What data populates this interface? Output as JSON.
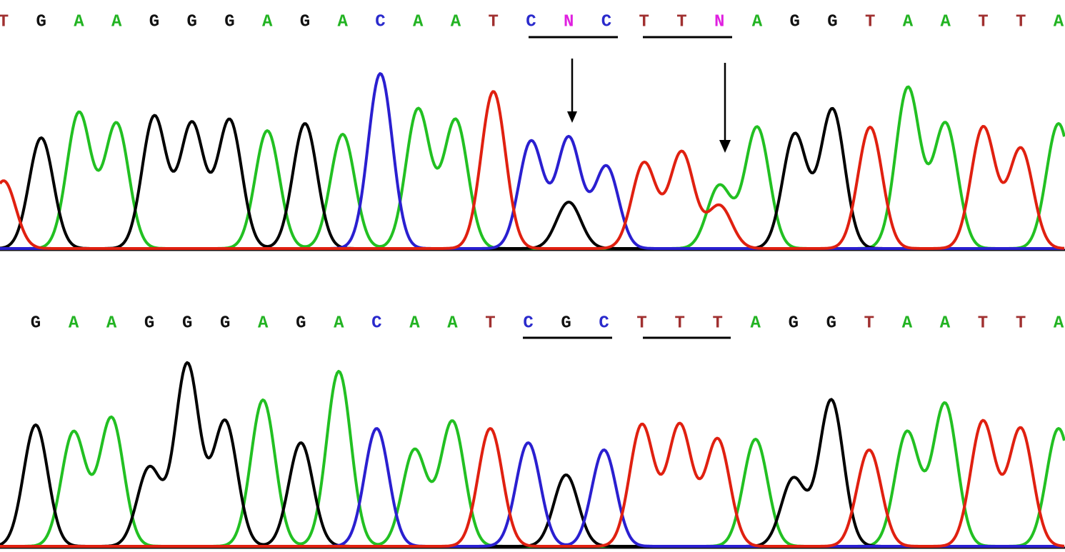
{
  "panels": [
    {
      "bases": [
        "T",
        "G",
        "A",
        "A",
        "G",
        "G",
        "G",
        "A",
        "G",
        "A",
        "C",
        "A",
        "A",
        "T",
        "C",
        "N",
        "C",
        "T",
        "T",
        "N",
        "A",
        "G",
        "G",
        "T",
        "A",
        "A",
        "T",
        "T",
        "A"
      ]
    },
    {
      "bases": [
        "G",
        "A",
        "A",
        "G",
        "G",
        "G",
        "A",
        "G",
        "A",
        "C",
        "A",
        "A",
        "T",
        "C",
        "G",
        "C",
        "T",
        "T",
        "T",
        "A",
        "G",
        "G",
        "T",
        "A",
        "A",
        "T",
        "T",
        "A"
      ]
    }
  ]
}
